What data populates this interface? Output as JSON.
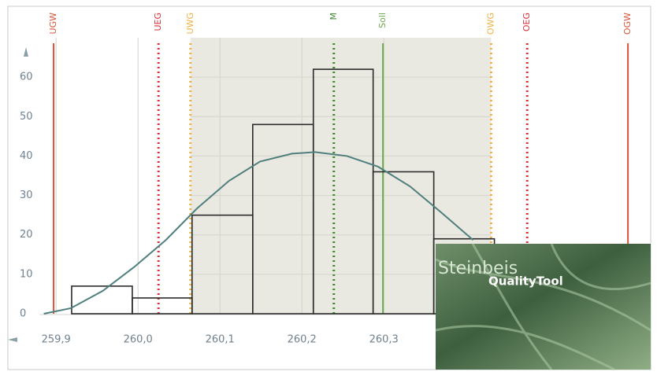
{
  "chart_data": {
    "type": "histogram",
    "bins": [
      259.919,
      259.993,
      260.066,
      260.14,
      260.214,
      260.287,
      260.361,
      260.435
    ],
    "values": [
      7,
      4,
      25,
      48,
      62,
      36,
      19
    ],
    "color": "#2b2b2b",
    "curve": {
      "x": [
        259.885,
        259.918,
        259.957,
        259.995,
        260.034,
        260.072,
        260.111,
        260.149,
        260.188,
        260.216,
        260.255,
        260.293,
        260.332,
        260.37,
        260.409
      ],
      "values": [
        0,
        1.4,
        5.8,
        11.8,
        18.7,
        26.7,
        33.7,
        38.6,
        40.6,
        41,
        40,
        37.3,
        32.3,
        25.7,
        18.7
      ],
      "color": "#4f7f7c"
    },
    "limits": [
      {
        "label": "UGW",
        "value": 259.897,
        "color": "#d9533a",
        "style": "solid"
      },
      {
        "label": "UEG",
        "value": 260.025,
        "color": "#d9333a",
        "style": "dotted"
      },
      {
        "label": "UWG",
        "value": 260.064,
        "color": "#f0b040",
        "style": "dotted"
      },
      {
        "label": "M",
        "value": 260.239,
        "color": "#3f8a2f",
        "style": "dotted"
      },
      {
        "label": "Soll",
        "value": 260.299,
        "color": "#6aa84f",
        "style": "solid"
      },
      {
        "label": "OWG",
        "value": 260.431,
        "color": "#f0b040",
        "style": "dotted"
      },
      {
        "label": "OEG",
        "value": 260.475,
        "color": "#d9333a",
        "style": "dotted"
      },
      {
        "label": "OGW",
        "value": 260.598,
        "color": "#d9533a",
        "style": "solid"
      }
    ],
    "xlim": [
      259.87,
      260.62
    ],
    "ylim": [
      0,
      70
    ],
    "xticks": [
      {
        "value": 259.9,
        "label": "259,9"
      },
      {
        "value": 260.0,
        "label": "260,0"
      },
      {
        "value": 260.1,
        "label": "260,1"
      },
      {
        "value": 260.2,
        "label": "260,2"
      },
      {
        "value": 260.3,
        "label": "260,3"
      }
    ],
    "yticks": [
      0,
      10,
      20,
      30,
      40,
      50,
      60
    ],
    "grid": true
  },
  "splash": {
    "brand": "Steinbeis",
    "product": "QualityTool"
  }
}
